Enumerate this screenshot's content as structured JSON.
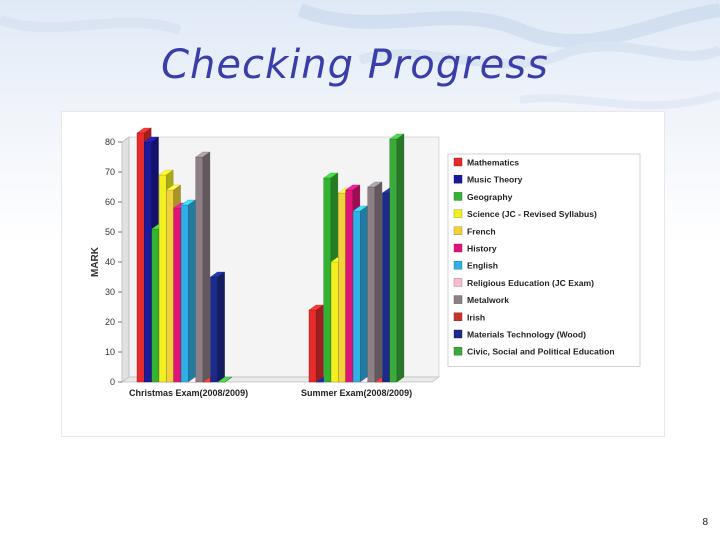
{
  "slide": {
    "title": "Checking Progress",
    "page_number": "8"
  },
  "chart_data": {
    "type": "bar",
    "ylabel": "MARK",
    "xlabel": "",
    "ylim": [
      0,
      80
    ],
    "yticks": [
      0,
      10,
      20,
      30,
      40,
      50,
      60,
      70,
      80
    ],
    "grid": false,
    "legend_position": "right",
    "categories": [
      "Christmas Exam(2008/2009)",
      "Summer Exam(2008/2009)"
    ],
    "series": [
      {
        "name": "Mathematics",
        "color": "#e52b2b",
        "values": [
          83,
          24
        ]
      },
      {
        "name": "Music Theory",
        "color": "#1a1a9a",
        "values": [
          80,
          0
        ]
      },
      {
        "name": "Geography",
        "color": "#33b233",
        "values": [
          51,
          68
        ]
      },
      {
        "name": "Science (JC - Revised Syllabus)",
        "color": "#f2f020",
        "values": [
          69,
          40
        ]
      },
      {
        "name": "French",
        "color": "#f2d23a",
        "values": [
          64,
          63
        ]
      },
      {
        "name": "History",
        "color": "#e0157a",
        "values": [
          58,
          64
        ]
      },
      {
        "name": "English",
        "color": "#30b0e6",
        "values": [
          59,
          57
        ]
      },
      {
        "name": "Religious Education (JC Exam)",
        "color": "#f7bcd2",
        "values": [
          0,
          0
        ]
      },
      {
        "name": "Metalwork",
        "color": "#8c7f86",
        "values": [
          75,
          65
        ]
      },
      {
        "name": "Irish",
        "color": "#c8322e",
        "values": [
          0,
          0
        ]
      },
      {
        "name": "Materials Technology (Wood)",
        "color": "#1c2a8c",
        "values": [
          35,
          63
        ]
      },
      {
        "name": "Civic, Social and Political Education",
        "color": "#3aaa3a",
        "values": [
          0,
          81
        ]
      }
    ]
  }
}
